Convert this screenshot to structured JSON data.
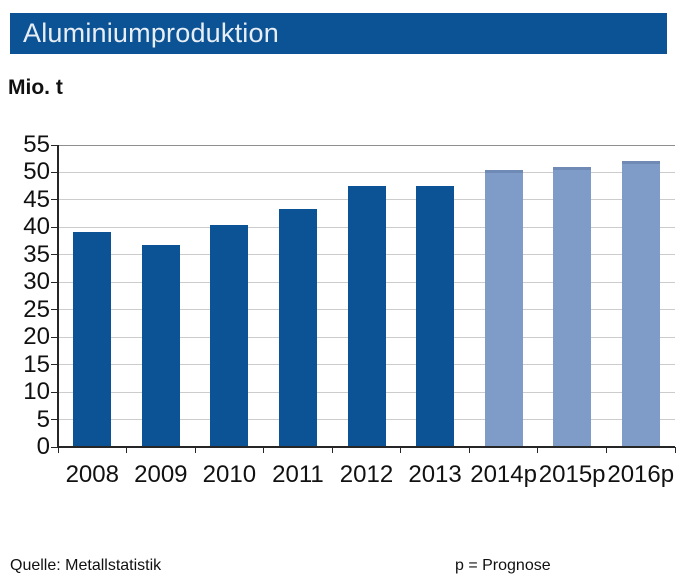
{
  "header": {
    "title": "Aluminiumproduktion"
  },
  "unit_label": "Mio. t",
  "footer": {
    "source": "Quelle: Metallstatistik",
    "note": "p = Prognose"
  },
  "colors": {
    "header_bg": "#0b5394",
    "actual_bar": "#0b5394",
    "forecast_bar": "#7f9cc9",
    "gridline": "#cccccc",
    "top_gridline": "#8f8f8f",
    "axis": "#262626",
    "title_text": "#e8eef6"
  },
  "chart_data": {
    "type": "bar",
    "title": "Aluminiumproduktion",
    "ylabel": "Mio. t",
    "xlabel": "",
    "categories": [
      "2008",
      "2009",
      "2010",
      "2011",
      "2012",
      "2013",
      "2014p",
      "2015p",
      "2016p"
    ],
    "values": [
      39.2,
      36.8,
      40.4,
      43.3,
      47.6,
      47.6,
      50.5,
      51.0,
      52.0
    ],
    "forecast_from_index": 6,
    "ylim": [
      0,
      55
    ],
    "ytick_step": 5,
    "yticks": [
      0,
      5,
      10,
      15,
      20,
      25,
      30,
      35,
      40,
      45,
      50,
      55
    ],
    "grid": "horizontal",
    "legend": "none",
    "source": "Quelle: Metallstatistik",
    "note": "p = Prognose"
  }
}
